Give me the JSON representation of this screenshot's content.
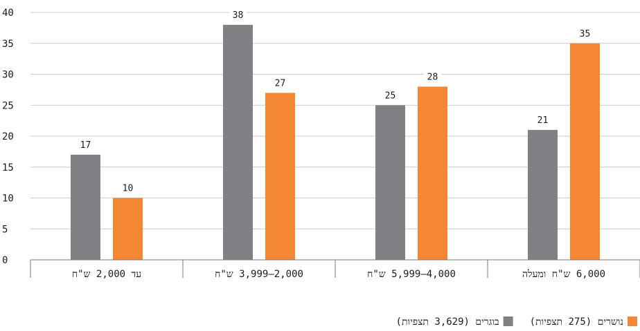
{
  "chart_data": {
    "type": "bar",
    "categories": [
      "עד 2,000 ש\"ח",
      "2,000–3,999 ש\"ח",
      "4,000–5,999 ש\"ח",
      "6,000 ש\"ח ומעלה"
    ],
    "series": [
      {
        "name": "בוגרים (3,629 תצפיות)",
        "values": [
          17,
          38,
          25,
          21
        ],
        "color": "#808184"
      },
      {
        "name": "נושרים (275 תצפיות)",
        "values": [
          10,
          27,
          28,
          35
        ],
        "color": "#f58634"
      }
    ],
    "y_ticks": [
      "0",
      "5",
      "10",
      "15",
      "20",
      "25",
      "30",
      "35",
      "40"
    ],
    "ylim": [
      0,
      40
    ],
    "grid": true,
    "legend_position": "bottom-right"
  }
}
